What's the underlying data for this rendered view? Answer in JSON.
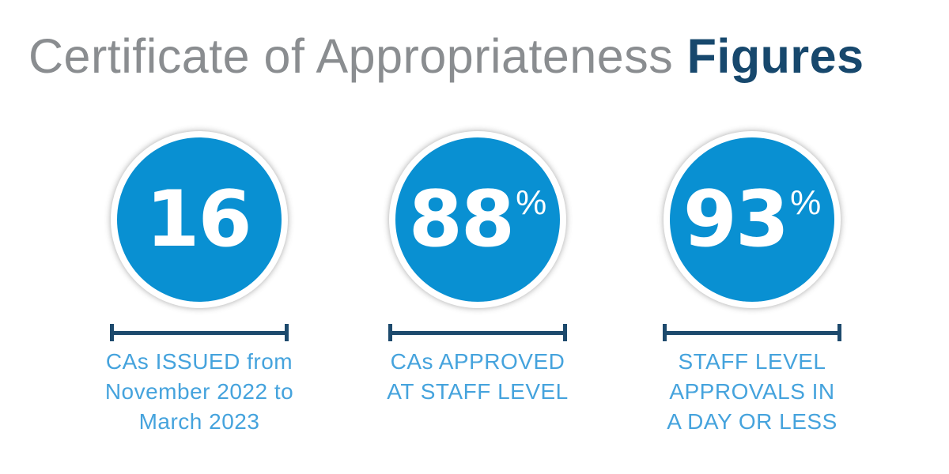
{
  "title": {
    "light": "Certificate of Appropriateness",
    "bold": "Figures"
  },
  "stats": [
    {
      "value": "16",
      "unit": "",
      "caption": "CAs ISSUED from\nNovember 2022 to\nMarch 2023"
    },
    {
      "value": "88",
      "unit": "%",
      "caption": "CAs APPROVED\nAT STAFF LEVEL"
    },
    {
      "value": "93",
      "unit": "%",
      "caption": "STAFF LEVEL\nAPPROVALS IN\nA DAY OR LESS"
    }
  ],
  "colors": {
    "circle_blue": "#0990d2",
    "caption_blue": "#45a3dd",
    "navy": "#1d4a6d",
    "title_gray": "#8a8d90",
    "background": "#ffffff"
  },
  "chart_data": {
    "type": "table",
    "title": "Certificate of Appropriateness Figures",
    "categories": [
      "CAs ISSUED from November 2022 to March 2023",
      "CAs APPROVED AT STAFF LEVEL",
      "STAFF LEVEL APPROVALS IN A DAY OR LESS"
    ],
    "values": [
      16,
      88,
      93
    ],
    "units": [
      "",
      "%",
      "%"
    ],
    "legend_position": "none",
    "grid": false
  }
}
